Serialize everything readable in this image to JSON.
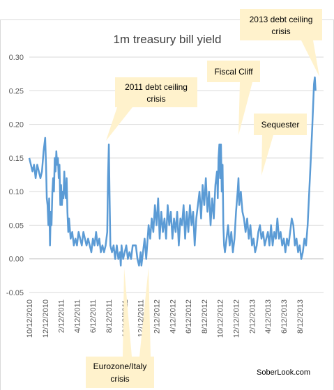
{
  "chart_data": {
    "type": "line",
    "title": "1m treasury bill yield",
    "ylim": [
      -0.05,
      0.3
    ],
    "yticks": [
      "-0.05",
      "0.00",
      "0.05",
      "0.10",
      "0.15",
      "0.20",
      "0.25",
      "0.30"
    ],
    "yvalues": [
      -0.05,
      0.0,
      0.05,
      0.1,
      0.15,
      0.2,
      0.25,
      0.3
    ],
    "xticks": [
      "10/12/2010",
      "12/12/2010",
      "2/12/2011",
      "4/12/2011",
      "6/12/2011",
      "8/12/2011",
      "10/12/2011",
      "12/12/2011",
      "2/12/2012",
      "4/12/2012",
      "6/12/2012",
      "8/12/2012",
      "10/12/2012",
      "12/12/2012",
      "2/12/2013",
      "4/12/2013",
      "6/12/2013",
      "8/12/2013"
    ],
    "xrange_months": [
      0,
      37
    ],
    "series_color": "#5B9BD5",
    "callout_color": "#FFF2CC",
    "series": [
      {
        "points": [
          [
            0.0,
            0.15
          ],
          [
            0.2,
            0.14
          ],
          [
            0.4,
            0.13
          ],
          [
            0.6,
            0.14
          ],
          [
            0.8,
            0.12
          ],
          [
            1.0,
            0.14
          ],
          [
            1.2,
            0.13
          ],
          [
            1.4,
            0.12
          ],
          [
            1.6,
            0.13
          ],
          [
            1.8,
            0.16
          ],
          [
            2.0,
            0.18
          ],
          [
            2.1,
            0.14
          ],
          [
            2.2,
            0.09
          ],
          [
            2.3,
            0.08
          ],
          [
            2.4,
            0.05
          ],
          [
            2.5,
            0.09
          ],
          [
            2.6,
            0.02
          ],
          [
            2.7,
            0.07
          ],
          [
            2.8,
            0.05
          ],
          [
            2.9,
            0.1
          ],
          [
            3.0,
            0.12
          ],
          [
            3.1,
            0.1
          ],
          [
            3.2,
            0.15
          ],
          [
            3.3,
            0.13
          ],
          [
            3.4,
            0.16
          ],
          [
            3.5,
            0.14
          ],
          [
            3.6,
            0.15
          ],
          [
            3.7,
            0.12
          ],
          [
            3.8,
            0.14
          ],
          [
            3.9,
            0.08
          ],
          [
            4.0,
            0.11
          ],
          [
            4.1,
            0.08
          ],
          [
            4.2,
            0.1
          ],
          [
            4.3,
            0.09
          ],
          [
            4.4,
            0.13
          ],
          [
            4.5,
            0.1
          ],
          [
            4.6,
            0.09
          ],
          [
            4.7,
            0.12
          ],
          [
            4.8,
            0.07
          ],
          [
            4.9,
            0.04
          ],
          [
            5.0,
            0.06
          ],
          [
            5.2,
            0.03
          ],
          [
            5.4,
            0.04
          ],
          [
            5.6,
            0.02
          ],
          [
            5.8,
            0.03
          ],
          [
            6.0,
            0.02
          ],
          [
            6.2,
            0.04
          ],
          [
            6.4,
            0.03
          ],
          [
            6.6,
            0.02
          ],
          [
            6.8,
            0.04
          ],
          [
            7.0,
            0.03
          ],
          [
            7.2,
            0.02
          ],
          [
            7.4,
            0.03
          ],
          [
            7.6,
            0.02
          ],
          [
            7.8,
            0.01
          ],
          [
            8.0,
            0.03
          ],
          [
            8.2,
            0.02
          ],
          [
            8.4,
            0.04
          ],
          [
            8.6,
            0.02
          ],
          [
            8.8,
            0.03
          ],
          [
            9.0,
            0.01
          ],
          [
            9.2,
            0.02
          ],
          [
            9.4,
            0.01
          ],
          [
            9.6,
            0.02
          ],
          [
            9.8,
            0.04
          ],
          [
            9.9,
            0.12
          ],
          [
            10.0,
            0.17
          ],
          [
            10.1,
            0.09
          ],
          [
            10.2,
            0.02
          ],
          [
            10.4,
            0.01
          ],
          [
            10.6,
            0.02
          ],
          [
            10.8,
            0.0
          ],
          [
            11.0,
            0.02
          ],
          [
            11.2,
            0.0
          ],
          [
            11.4,
            0.01
          ],
          [
            11.5,
            -0.01
          ],
          [
            11.6,
            0.02
          ],
          [
            11.8,
            0.0
          ],
          [
            12.0,
            0.01
          ],
          [
            12.2,
            0.02
          ],
          [
            12.4,
            0.0
          ],
          [
            12.6,
            0.01
          ],
          [
            12.8,
            0.0
          ],
          [
            13.0,
            0.02
          ],
          [
            13.2,
            0.02
          ],
          [
            13.4,
            0.02
          ],
          [
            13.6,
            0.0
          ],
          [
            13.8,
            -0.01
          ],
          [
            14.0,
            0.01
          ],
          [
            14.1,
            -0.01
          ],
          [
            14.3,
            0.01
          ],
          [
            14.5,
            0.03
          ],
          [
            14.7,
            0.0
          ],
          [
            15.0,
            0.05
          ],
          [
            15.2,
            0.03
          ],
          [
            15.4,
            0.06
          ],
          [
            15.6,
            0.04
          ],
          [
            15.8,
            0.08
          ],
          [
            16.0,
            0.05
          ],
          [
            16.2,
            0.09
          ],
          [
            16.4,
            0.03
          ],
          [
            16.6,
            0.07
          ],
          [
            16.8,
            0.04
          ],
          [
            17.0,
            0.06
          ],
          [
            17.2,
            0.03
          ],
          [
            17.4,
            0.08
          ],
          [
            17.6,
            0.05
          ],
          [
            17.8,
            0.07
          ],
          [
            18.0,
            0.03
          ],
          [
            18.2,
            0.06
          ],
          [
            18.4,
            0.04
          ],
          [
            18.6,
            0.07
          ],
          [
            18.8,
            0.02
          ],
          [
            19.0,
            0.06
          ],
          [
            19.2,
            0.05
          ],
          [
            19.4,
            0.08
          ],
          [
            19.6,
            0.03
          ],
          [
            19.8,
            0.07
          ],
          [
            20.0,
            0.04
          ],
          [
            20.2,
            0.08
          ],
          [
            20.4,
            0.05
          ],
          [
            20.6,
            0.07
          ],
          [
            20.8,
            0.02
          ],
          [
            21.0,
            0.06
          ],
          [
            21.2,
            0.08
          ],
          [
            21.4,
            0.1
          ],
          [
            21.6,
            0.06
          ],
          [
            21.8,
            0.11
          ],
          [
            22.0,
            0.08
          ],
          [
            22.2,
            0.12
          ],
          [
            22.4,
            0.07
          ],
          [
            22.6,
            0.1
          ],
          [
            22.8,
            0.05
          ],
          [
            23.0,
            0.09
          ],
          [
            23.2,
            0.06
          ],
          [
            23.4,
            0.11
          ],
          [
            23.6,
            0.13
          ],
          [
            23.7,
            0.09
          ],
          [
            23.8,
            0.15
          ],
          [
            23.9,
            0.17
          ],
          [
            24.0,
            0.12
          ],
          [
            24.1,
            0.17
          ],
          [
            24.2,
            0.1
          ],
          [
            24.3,
            0.14
          ],
          [
            24.4,
            0.05
          ],
          [
            24.5,
            0.02
          ],
          [
            24.6,
            0.01
          ],
          [
            24.8,
            0.03
          ],
          [
            25.0,
            0.05
          ],
          [
            25.2,
            0.02
          ],
          [
            25.4,
            0.04
          ],
          [
            25.6,
            0.01
          ],
          [
            25.8,
            0.03
          ],
          [
            26.0,
            0.07
          ],
          [
            26.2,
            0.1
          ],
          [
            26.3,
            0.12
          ],
          [
            26.4,
            0.08
          ],
          [
            26.6,
            0.1
          ],
          [
            26.8,
            0.07
          ],
          [
            27.0,
            0.06
          ],
          [
            27.2,
            0.04
          ],
          [
            27.4,
            0.06
          ],
          [
            27.6,
            0.03
          ],
          [
            27.8,
            0.05
          ],
          [
            28.0,
            0.02
          ],
          [
            28.2,
            0.03
          ],
          [
            28.4,
            0.01
          ],
          [
            28.6,
            0.02
          ],
          [
            28.8,
            0.04
          ],
          [
            29.0,
            0.05
          ],
          [
            29.2,
            0.03
          ],
          [
            29.4,
            0.04
          ],
          [
            29.6,
            0.02
          ],
          [
            29.8,
            0.03
          ],
          [
            30.0,
            0.04
          ],
          [
            30.2,
            0.02
          ],
          [
            30.4,
            0.05
          ],
          [
            30.6,
            0.02
          ],
          [
            30.8,
            0.04
          ],
          [
            31.0,
            0.03
          ],
          [
            31.2,
            0.06
          ],
          [
            31.4,
            0.03
          ],
          [
            31.6,
            0.04
          ],
          [
            31.8,
            0.02
          ],
          [
            32.0,
            0.03
          ],
          [
            32.2,
            0.01
          ],
          [
            32.4,
            0.03
          ],
          [
            32.6,
            0.02
          ],
          [
            32.8,
            0.04
          ],
          [
            33.0,
            0.06
          ],
          [
            33.2,
            0.05
          ],
          [
            33.4,
            0.02
          ],
          [
            33.6,
            0.03
          ],
          [
            33.8,
            0.01
          ],
          [
            34.0,
            0.02
          ],
          [
            34.2,
            0.0
          ],
          [
            34.4,
            0.01
          ],
          [
            34.6,
            0.03
          ],
          [
            34.8,
            0.02
          ],
          [
            35.0,
            0.05
          ],
          [
            35.2,
            0.1
          ],
          [
            35.4,
            0.15
          ],
          [
            35.6,
            0.2
          ],
          [
            35.8,
            0.26
          ],
          [
            35.9,
            0.27
          ],
          [
            36.0,
            0.25
          ]
        ]
      }
    ],
    "annotations": [
      {
        "text_lines": [
          "2011 debt ceiling",
          "crisis"
        ]
      },
      {
        "text_lines": [
          "Fiscal Cliff"
        ]
      },
      {
        "text_lines": [
          "Sequester"
        ]
      },
      {
        "text_lines": [
          "2013 debt ceiling",
          "crisis"
        ]
      },
      {
        "text_lines": [
          "Eurozone/Italy",
          "crisis"
        ]
      }
    ],
    "credit": "SoberLook.com"
  }
}
